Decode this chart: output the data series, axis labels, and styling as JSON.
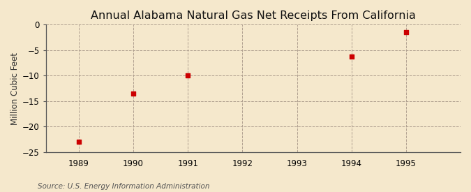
{
  "title": "Annual Alabama Natural Gas Net Receipts From California",
  "ylabel": "Million Cubic Feet",
  "source": "Source: U.S. Energy Information Administration",
  "background_color": "#f5e8cc",
  "plot_background_color": "#f5e8cc",
  "x_values": [
    1989,
    1990,
    1991,
    1994,
    1995
  ],
  "y_values": [
    -23.0,
    -13.5,
    -10.0,
    -6.3,
    -1.5
  ],
  "xlim": [
    1988.4,
    1996.0
  ],
  "ylim": [
    -25,
    0
  ],
  "yticks": [
    0,
    -5,
    -10,
    -15,
    -20,
    -25
  ],
  "xticks": [
    1989,
    1990,
    1991,
    1992,
    1993,
    1994,
    1995
  ],
  "marker_color": "#cc0000",
  "marker_size": 4,
  "grid_color": "#b0a090",
  "title_fontsize": 11.5,
  "label_fontsize": 8.5,
  "tick_fontsize": 8.5,
  "source_fontsize": 7.5
}
